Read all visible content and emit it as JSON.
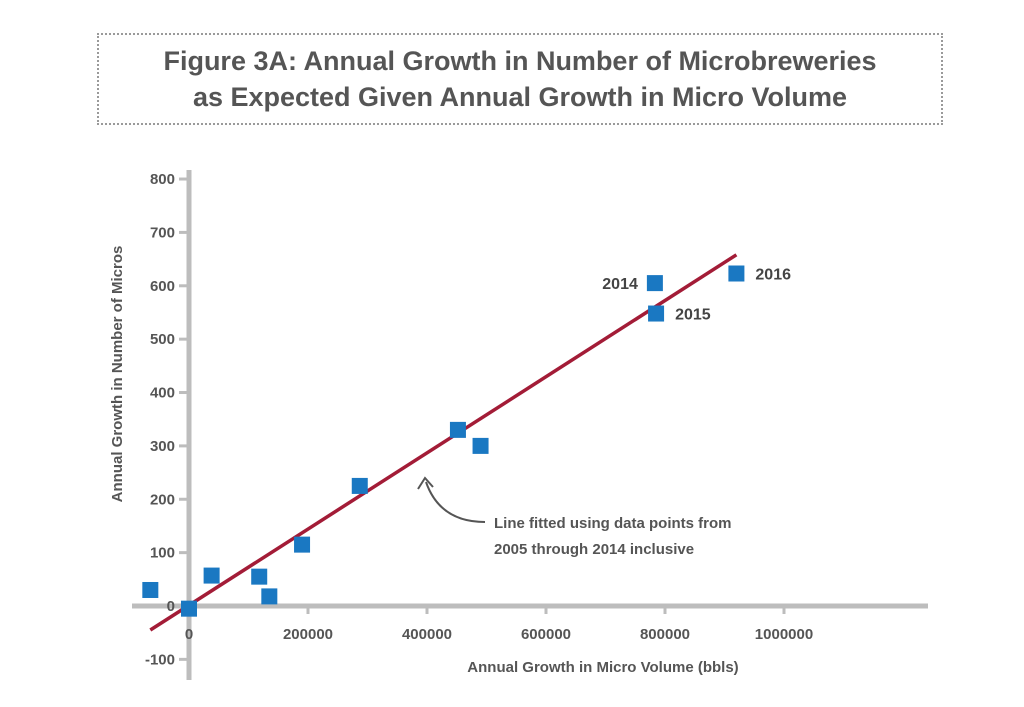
{
  "chart_data": {
    "type": "scatter",
    "title": "Figure 3A: Annual Growth in Number of Microbreweries",
    "title_line2": "as Expected Given Annual Growth in Micro Volume",
    "xlabel": "Annual Growth in Micro Volume (bbls)",
    "ylabel": "Annual Growth in Number of Micros",
    "xlim": [
      -90000,
      1240000
    ],
    "ylim": [
      -100,
      800
    ],
    "x_ticks": [
      "0",
      "200000",
      "400000",
      "600000",
      "800000",
      "1000000"
    ],
    "y_ticks": [
      "-100",
      "0",
      "100",
      "200",
      "300",
      "400",
      "500",
      "600",
      "700",
      "800"
    ],
    "marker_color": "#1a78c2",
    "line_color": "#a31c37",
    "points": [
      {
        "x": -65000,
        "y": 30,
        "label": ""
      },
      {
        "x": 0,
        "y": -5,
        "label": ""
      },
      {
        "x": 38000,
        "y": 57,
        "label": ""
      },
      {
        "x": 118000,
        "y": 55,
        "label": ""
      },
      {
        "x": 135000,
        "y": 18,
        "label": ""
      },
      {
        "x": 190000,
        "y": 115,
        "label": ""
      },
      {
        "x": 287000,
        "y": 225,
        "label": ""
      },
      {
        "x": 452000,
        "y": 330,
        "label": ""
      },
      {
        "x": 490000,
        "y": 300,
        "label": ""
      },
      {
        "x": 783000,
        "y": 605,
        "label": "2014"
      },
      {
        "x": 785000,
        "y": 548,
        "label": "2015"
      },
      {
        "x": 920000,
        "y": 623,
        "label": "2016"
      }
    ],
    "fit_line": {
      "x": [
        -65000,
        920000
      ],
      "y": [
        -45,
        658
      ]
    },
    "annotation": {
      "line1": "Line fitted using data points from",
      "line2": "2005 through 2014 inclusive"
    }
  }
}
